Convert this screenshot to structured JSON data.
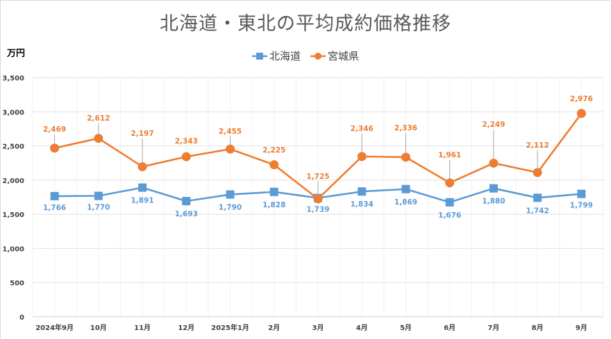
{
  "chart_data": {
    "type": "line",
    "title": "北海道・東北の平均成約価格推移",
    "ylabel": "万円",
    "xlabel": "",
    "categories": [
      "2024年9月",
      "10月",
      "11月",
      "12月",
      "2025年1月",
      "2月",
      "3月",
      "4月",
      "5月",
      "6月",
      "7月",
      "8月",
      "9月"
    ],
    "ylim": [
      0,
      3500
    ],
    "yticks": [
      0,
      500,
      1000,
      1500,
      2000,
      2500,
      3000,
      3500
    ],
    "ytick_labels": [
      "0",
      "500",
      "1,000",
      "1,500",
      "2,000",
      "2,500",
      "3,000",
      "3,500"
    ],
    "grid": true,
    "legend_position": "top-center",
    "series": [
      {
        "name": "北海道",
        "color": "#5b9bd5",
        "marker": "square",
        "values": [
          1766,
          1770,
          1891,
          1693,
          1790,
          1828,
          1739,
          1834,
          1869,
          1676,
          1880,
          1742,
          1799
        ],
        "labels": [
          "1,766",
          "1,770",
          "1,891",
          "1,693",
          "1,790",
          "1,828",
          "1,739",
          "1,834",
          "1,869",
          "1,676",
          "1,880",
          "1,742",
          "1,799"
        ]
      },
      {
        "name": "宮城県",
        "color": "#ed7d31",
        "marker": "circle",
        "values": [
          2469,
          2612,
          2197,
          2343,
          2455,
          2225,
          1725,
          2346,
          2336,
          1961,
          2249,
          2112,
          2976
        ],
        "labels": [
          "2,469",
          "2,612",
          "2,197",
          "2,343",
          "2,455",
          "2,225",
          "1,725",
          "2,346",
          "2,336",
          "1,961",
          "2,249",
          "2,112",
          "2,976"
        ]
      }
    ]
  },
  "legend": {
    "items": [
      {
        "label": "北海道",
        "color": "#5b9bd5"
      },
      {
        "label": "宮城県",
        "color": "#ed7d31"
      }
    ]
  }
}
